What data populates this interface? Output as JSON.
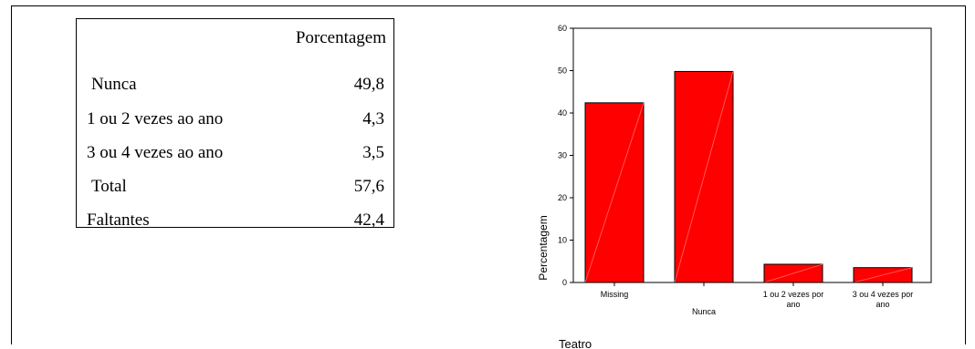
{
  "table": {
    "header": "Porcentagem",
    "rows": [
      {
        "label": "Nunca",
        "value": "49,8"
      },
      {
        "label": "1 ou 2 vezes ao ano",
        "value": "4,3"
      },
      {
        "label": "3 ou 4 vezes ao ano",
        "value": "3,5"
      },
      {
        "label": "Total",
        "value": "57,6"
      },
      {
        "label": "Faltantes",
        "value": "42,4"
      }
    ]
  },
  "chart_data": {
    "type": "bar",
    "categories": [
      "Missing",
      "Nunca",
      "1 ou 2 vezes por ano",
      "3 ou 4 vezes por ano"
    ],
    "category_label_lines": [
      [
        "Missing"
      ],
      [
        "Nunca"
      ],
      [
        "1 ou 2 vezes por",
        "ano"
      ],
      [
        "3 ou 4 vezes por",
        "ano"
      ]
    ],
    "values": [
      42.4,
      49.8,
      4.3,
      3.5
    ],
    "xlabel": "Teatro",
    "ylabel": "Percentagem",
    "ylim": [
      0,
      60
    ],
    "yticks": [
      0,
      10,
      20,
      30,
      40,
      50,
      60
    ],
    "bar_color": "#ff0000",
    "bar_edge_color": "#000000",
    "grid": false
  }
}
